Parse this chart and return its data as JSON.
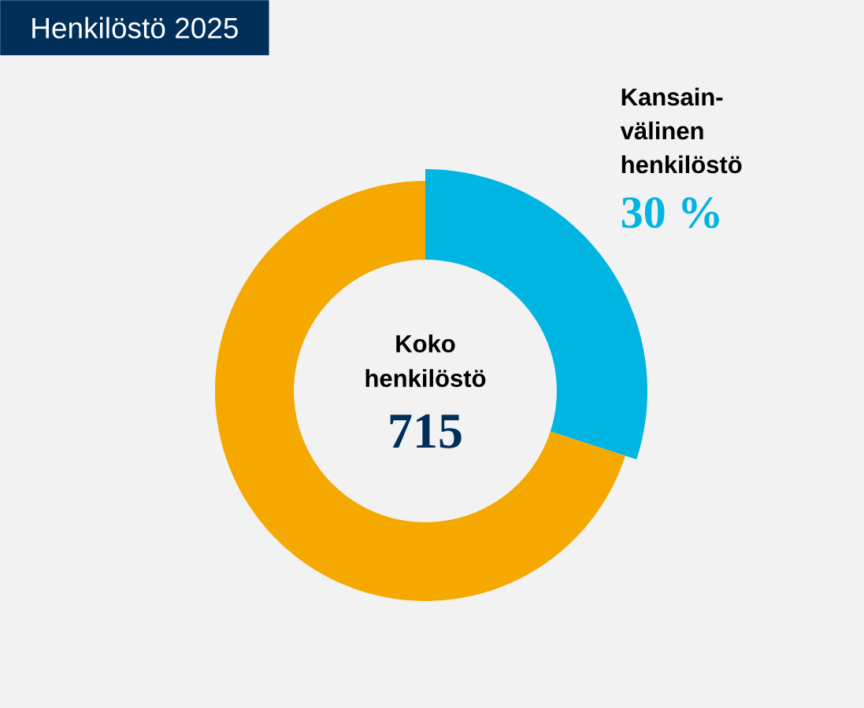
{
  "chart_data": {
    "type": "donut",
    "title": "Henkilöstö 2025",
    "categories": [
      "Kansain-välinen henkilöstö",
      null
    ],
    "values": [
      30,
      70
    ],
    "colors": [
      "#00b5e2",
      "#f5a800"
    ],
    "value_labels": [
      "30 %",
      null
    ],
    "annotations": [
      "Koko henkilöstö",
      "715"
    ]
  }
}
